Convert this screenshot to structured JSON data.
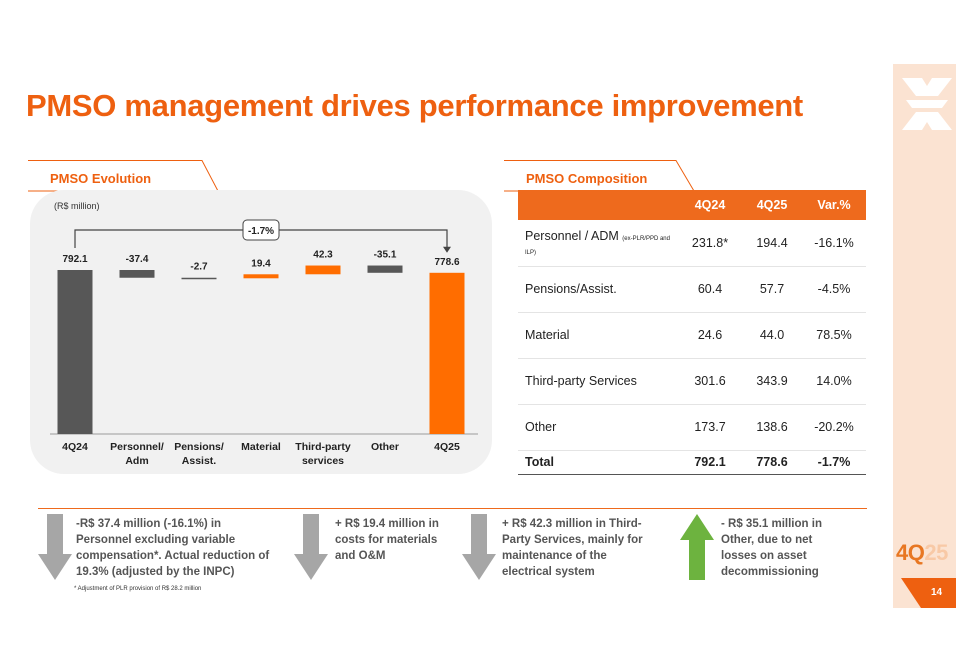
{
  "title": "PMSO management drives performance improvement",
  "chart_section": {
    "tab_label": "PMSO Evolution",
    "unit": "(R$ million)",
    "variation_badge": "-1.7%"
  },
  "chart_data": {
    "type": "bar",
    "subtype": "waterfall",
    "title": "PMSO Evolution",
    "ylabel": "R$ million",
    "categories": [
      "4Q24",
      "Personnel/ Adm",
      "Pensions/ Assist.",
      "Material",
      "Third-party services",
      "Other",
      "4Q25"
    ],
    "category_lines": [
      [
        "4Q24"
      ],
      [
        "Personnel/",
        "Adm"
      ],
      [
        "Pensions/",
        "Assist."
      ],
      [
        "Material"
      ],
      [
        "Third-party",
        "services"
      ],
      [
        "Other"
      ],
      [
        "4Q25"
      ]
    ],
    "values": [
      792.1,
      -37.4,
      -2.7,
      19.4,
      42.3,
      -35.1,
      778.6
    ],
    "labels": [
      "792.1",
      "-37.4",
      "-2.7",
      "19.4",
      "42.3",
      "-35.1",
      "778.6"
    ],
    "kinds": [
      "total",
      "delta",
      "delta",
      "delta",
      "delta",
      "delta",
      "total"
    ],
    "colors": {
      "total_start": "#575757",
      "negative": "#575757",
      "positive": "#ff6d00",
      "total_end": "#ff6d00"
    },
    "variation_label": "-1.7%"
  },
  "composition": {
    "tab_label": "PMSO Composition",
    "headers": [
      "",
      "4Q24",
      "4Q25",
      "Var.%"
    ],
    "rows": [
      {
        "label": "Personnel / ADM",
        "note": "(ex-PLR/PPD and ILP)",
        "q24": "231.8*",
        "q25": "194.4",
        "var": "-16.1%"
      },
      {
        "label": "Pensions/Assist.",
        "q24": "60.4",
        "q25": "57.7",
        "var": "-4.5%"
      },
      {
        "label": "Material",
        "q24": "24.6",
        "q25": "44.0",
        "var": "78.5%"
      },
      {
        "label": "Third-party Services",
        "q24": "301.6",
        "q25": "343.9",
        "var": "14.0%"
      },
      {
        "label": "Other",
        "q24": "173.7",
        "q25": "138.6",
        "var": "-20.2%"
      }
    ],
    "total": {
      "label": "Total",
      "q24": "792.1",
      "q25": "778.6",
      "var": "-1.7%"
    }
  },
  "notes": [
    {
      "text": "-R$ 37.4 million (-16.1%) in Personnel excluding variable compensation*. Actual reduction of 19.3% (adjusted by the INPC)",
      "direction": "down"
    },
    {
      "text": "+ R$ 19.4 million in costs for materials and O&M",
      "direction": "down"
    },
    {
      "text": "+ R$ 42.3 million in Third-Party Services, mainly for maintenance of the electrical system",
      "direction": "down"
    },
    {
      "text": "- R$ 35.1 million in Other, due to net losses on asset decommissioning",
      "direction": "up"
    }
  ],
  "footnote": "* Adjustment of PLR provision of R$ 28.2 million",
  "brand": {
    "period_dark": "4Q",
    "period_light": "25",
    "page_number": "14",
    "accent": "#ee6010",
    "arrow_gray": "#a6a6a6",
    "arrow_green": "#6db33f"
  }
}
